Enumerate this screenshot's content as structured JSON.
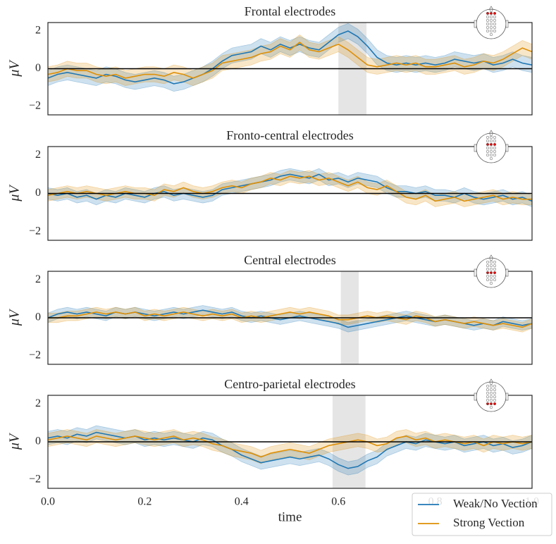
{
  "chart_data": [
    {
      "type": "line",
      "title": "Frontal electrodes",
      "ylabel": "μV",
      "xlim": [
        0,
        1
      ],
      "ylim": [
        -2.45,
        2.45
      ],
      "yticks": [
        {
          "value": -2,
          "label": "−2"
        },
        0,
        2
      ],
      "zero_line": true,
      "shaded_xrange": [
        0.6,
        0.658
      ],
      "x": [
        0,
        0.02,
        0.04,
        0.06,
        0.08,
        0.1,
        0.12,
        0.14,
        0.16,
        0.18,
        0.2,
        0.22,
        0.24,
        0.26,
        0.28,
        0.3,
        0.32,
        0.34,
        0.36,
        0.38,
        0.4,
        0.42,
        0.44,
        0.46,
        0.48,
        0.5,
        0.52,
        0.54,
        0.56,
        0.58,
        0.6,
        0.62,
        0.64,
        0.66,
        0.68,
        0.7,
        0.72,
        0.74,
        0.76,
        0.78,
        0.8,
        0.82,
        0.84,
        0.86,
        0.88,
        0.9,
        0.92,
        0.94,
        0.96,
        0.98,
        1.0
      ],
      "series": [
        {
          "name": "Weak/No Vection",
          "color": "#1f77b4",
          "error": 0.4,
          "values": [
            -0.5,
            -0.3,
            -0.2,
            -0.3,
            -0.4,
            -0.5,
            -0.3,
            -0.4,
            -0.6,
            -0.7,
            -0.6,
            -0.5,
            -0.6,
            -0.8,
            -0.7,
            -0.5,
            -0.3,
            0.0,
            0.4,
            0.7,
            0.8,
            0.9,
            1.2,
            1.0,
            1.3,
            1.1,
            1.3,
            1.1,
            1.0,
            1.4,
            1.8,
            2.0,
            1.7,
            1.2,
            0.6,
            0.3,
            0.2,
            0.3,
            0.2,
            0.3,
            0.2,
            0.3,
            0.5,
            0.4,
            0.3,
            0.4,
            0.2,
            0.3,
            0.5,
            0.3,
            0.2
          ]
        },
        {
          "name": "Strong Vection",
          "color": "#de8f05",
          "error": 0.4,
          "values": [
            -0.3,
            -0.2,
            0,
            -0.1,
            -0.1,
            -0.3,
            -0.4,
            -0.3,
            -0.5,
            -0.4,
            -0.3,
            -0.3,
            -0.4,
            -0.2,
            -0.3,
            -0.5,
            -0.3,
            -0.1,
            0.3,
            0.4,
            0.5,
            0.6,
            0.8,
            0.9,
            1.2,
            1.0,
            1.4,
            1.0,
            0.9,
            1.1,
            1.3,
            1.0,
            0.6,
            0.2,
            0.1,
            0.2,
            0.3,
            0.2,
            0.3,
            0.1,
            0.1,
            0.2,
            0.3,
            0.1,
            0.2,
            0.4,
            0.3,
            0.5,
            0.8,
            1.1,
            0.9
          ]
        }
      ]
    },
    {
      "type": "line",
      "title": "Fronto-central electrodes",
      "ylabel": "μV",
      "xlim": [
        0,
        1
      ],
      "ylim": [
        -2.45,
        2.45
      ],
      "yticks": [
        {
          "value": -2,
          "label": "−2"
        },
        0,
        2
      ],
      "zero_line": true,
      "x": [
        0,
        0.02,
        0.04,
        0.06,
        0.08,
        0.1,
        0.12,
        0.14,
        0.16,
        0.18,
        0.2,
        0.22,
        0.24,
        0.26,
        0.28,
        0.3,
        0.32,
        0.34,
        0.36,
        0.38,
        0.4,
        0.42,
        0.44,
        0.46,
        0.48,
        0.5,
        0.52,
        0.54,
        0.56,
        0.58,
        0.6,
        0.62,
        0.64,
        0.66,
        0.68,
        0.7,
        0.72,
        0.74,
        0.76,
        0.78,
        0.8,
        0.82,
        0.84,
        0.86,
        0.88,
        0.9,
        0.92,
        0.94,
        0.96,
        0.98,
        1.0
      ],
      "series": [
        {
          "name": "Weak/No Vection",
          "color": "#1f77b4",
          "error": 0.3,
          "values": [
            0.0,
            -0.1,
            0,
            -0.2,
            -0.1,
            -0.3,
            -0.1,
            -0.2,
            0,
            -0.1,
            -0.2,
            0,
            0.1,
            -0.1,
            0,
            -0.1,
            -0.2,
            -0.1,
            0.2,
            0.3,
            0.4,
            0.5,
            0.6,
            0.7,
            0.9,
            1.0,
            0.9,
            0.8,
            1.0,
            0.7,
            0.8,
            0.6,
            0.8,
            0.7,
            0.6,
            0.3,
            0.1,
            0.1,
            0.0,
            0.1,
            -0.1,
            -0.1,
            -0.2,
            0,
            -0.2,
            -0.3,
            -0.2,
            -0.1,
            -0.3,
            -0.2,
            -0.4
          ]
        },
        {
          "name": "Strong Vection",
          "color": "#de8f05",
          "error": 0.3,
          "values": [
            -0.1,
            0,
            0.1,
            0,
            0.1,
            0,
            -0.1,
            0,
            0.1,
            0,
            0,
            -0.1,
            0.2,
            0.1,
            0.3,
            0.1,
            0,
            0.1,
            0.3,
            0.4,
            0.3,
            0.5,
            0.6,
            0.8,
            0.7,
            0.9,
            0.8,
            0.9,
            0.7,
            0.8,
            0.6,
            0.4,
            0.6,
            0.3,
            0.2,
            0.4,
            0.1,
            -0.2,
            -0.3,
            -0.1,
            -0.4,
            -0.3,
            -0.2,
            -0.4,
            -0.3,
            -0.2,
            -0.1,
            -0.3,
            -0.2,
            -0.3,
            -0.3
          ]
        }
      ]
    },
    {
      "type": "line",
      "title": "Central electrodes",
      "ylabel": "μV",
      "xlim": [
        0,
        1
      ],
      "ylim": [
        -2.45,
        2.45
      ],
      "yticks": [
        {
          "value": -2,
          "label": "−2"
        },
        0,
        2
      ],
      "zero_line": true,
      "shaded_xrange": [
        0.605,
        0.642
      ],
      "x": [
        0,
        0.02,
        0.04,
        0.06,
        0.08,
        0.1,
        0.12,
        0.14,
        0.16,
        0.18,
        0.2,
        0.22,
        0.24,
        0.26,
        0.28,
        0.3,
        0.32,
        0.34,
        0.36,
        0.38,
        0.4,
        0.42,
        0.44,
        0.46,
        0.48,
        0.5,
        0.52,
        0.54,
        0.56,
        0.58,
        0.6,
        0.62,
        0.64,
        0.66,
        0.68,
        0.7,
        0.72,
        0.74,
        0.76,
        0.78,
        0.8,
        0.82,
        0.84,
        0.86,
        0.88,
        0.9,
        0.92,
        0.94,
        0.96,
        0.98,
        1.0
      ],
      "series": [
        {
          "name": "Weak/No Vection",
          "color": "#1f77b4",
          "error": 0.25,
          "values": [
            0.0,
            0.2,
            0.3,
            0.2,
            0.3,
            0.2,
            0.1,
            0.3,
            0.2,
            0.3,
            0.2,
            0.1,
            0.2,
            0.3,
            0.2,
            0.3,
            0.4,
            0.3,
            0.2,
            0.3,
            0.1,
            0.0,
            0.1,
            0,
            -0.1,
            0,
            0.1,
            0,
            -0.1,
            -0.2,
            -0.3,
            -0.5,
            -0.4,
            -0.3,
            -0.2,
            -0.1,
            0,
            0.1,
            0,
            -0.1,
            -0.2,
            -0.1,
            -0.2,
            -0.3,
            -0.4,
            -0.3,
            -0.4,
            -0.2,
            -0.3,
            -0.4,
            -0.3
          ]
        },
        {
          "name": "Strong Vection",
          "color": "#de8f05",
          "error": 0.25,
          "values": [
            0.0,
            0.0,
            0.1,
            0.1,
            0.2,
            0.3,
            0.2,
            0.3,
            0.2,
            0.3,
            0.1,
            0.2,
            0.1,
            0.2,
            0.3,
            0.2,
            0.1,
            0.2,
            0.1,
            0.2,
            0.0,
            0.1,
            0.0,
            0.1,
            0.2,
            0.3,
            0.2,
            0.3,
            0.2,
            0.1,
            -0.1,
            -0.1,
            0,
            0.1,
            0,
            0.1,
            0,
            -0.1,
            0.1,
            0,
            -0.2,
            -0.1,
            -0.2,
            -0.3,
            -0.2,
            -0.3,
            -0.4,
            -0.3,
            -0.4,
            -0.5,
            -0.3
          ]
        }
      ]
    },
    {
      "type": "line",
      "title": "Centro-parietal electrodes",
      "ylabel": "μV",
      "xlabel": "time",
      "xlim": [
        0,
        1
      ],
      "ylim": [
        -2.45,
        2.45
      ],
      "xticks": [
        {
          "value": 0,
          "label": "0.0"
        },
        0.2,
        0.4,
        0.6,
        0.8,
        {
          "value": 1,
          "label": "1.0"
        }
      ],
      "yticks": [
        {
          "value": -2,
          "label": "−2"
        },
        0,
        2
      ],
      "zero_line": true,
      "shaded_xrange": [
        0.588,
        0.656
      ],
      "legend": "lower right",
      "x": [
        0,
        0.02,
        0.04,
        0.06,
        0.08,
        0.1,
        0.12,
        0.14,
        0.16,
        0.18,
        0.2,
        0.22,
        0.24,
        0.26,
        0.28,
        0.3,
        0.32,
        0.34,
        0.36,
        0.38,
        0.4,
        0.42,
        0.44,
        0.46,
        0.48,
        0.5,
        0.52,
        0.54,
        0.56,
        0.58,
        0.6,
        0.62,
        0.64,
        0.66,
        0.68,
        0.7,
        0.72,
        0.74,
        0.76,
        0.78,
        0.8,
        0.82,
        0.84,
        0.86,
        0.88,
        0.9,
        0.92,
        0.94,
        0.96,
        0.98,
        1.0
      ],
      "series": [
        {
          "name": "Weak/No Vection",
          "color": "#1f77b4",
          "error": 0.35,
          "values": [
            0.2,
            0.3,
            0.2,
            0.4,
            0.3,
            0.5,
            0.4,
            0.3,
            0.2,
            0.3,
            0.1,
            0.2,
            0.1,
            0.2,
            0.1,
            0.0,
            0.2,
            0.1,
            -0.2,
            -0.4,
            -0.7,
            -0.9,
            -1.1,
            -1.0,
            -0.9,
            -0.8,
            -0.9,
            -0.8,
            -0.7,
            -0.9,
            -1.2,
            -1.4,
            -1.3,
            -1.0,
            -0.8,
            -0.4,
            -0.2,
            0.0,
            -0.1,
            0.1,
            0,
            -0.1,
            0,
            -0.2,
            -0.1,
            0,
            -0.2,
            -0.1,
            -0.3,
            -0.2,
            0.0
          ]
        },
        {
          "name": "Strong Vection",
          "color": "#de8f05",
          "error": 0.35,
          "values": [
            0.1,
            0.2,
            0.3,
            0.2,
            0.1,
            0.3,
            0.2,
            0.1,
            0.2,
            0.3,
            0.2,
            0.1,
            0.2,
            0.3,
            0.1,
            0.2,
            0.1,
            -0.1,
            -0.2,
            -0.4,
            -0.5,
            -0.6,
            -0.8,
            -0.6,
            -0.5,
            -0.4,
            -0.5,
            -0.6,
            -0.4,
            -0.2,
            -0.1,
            0.0,
            0.1,
            0.0,
            -0.2,
            -0.1,
            0.2,
            0.3,
            0.1,
            0.2,
            0.0,
            0.1,
            0,
            -0.1,
            0,
            -0.2,
            0,
            -0.1,
            0,
            -0.1,
            0.0
          ]
        }
      ]
    }
  ]
}
